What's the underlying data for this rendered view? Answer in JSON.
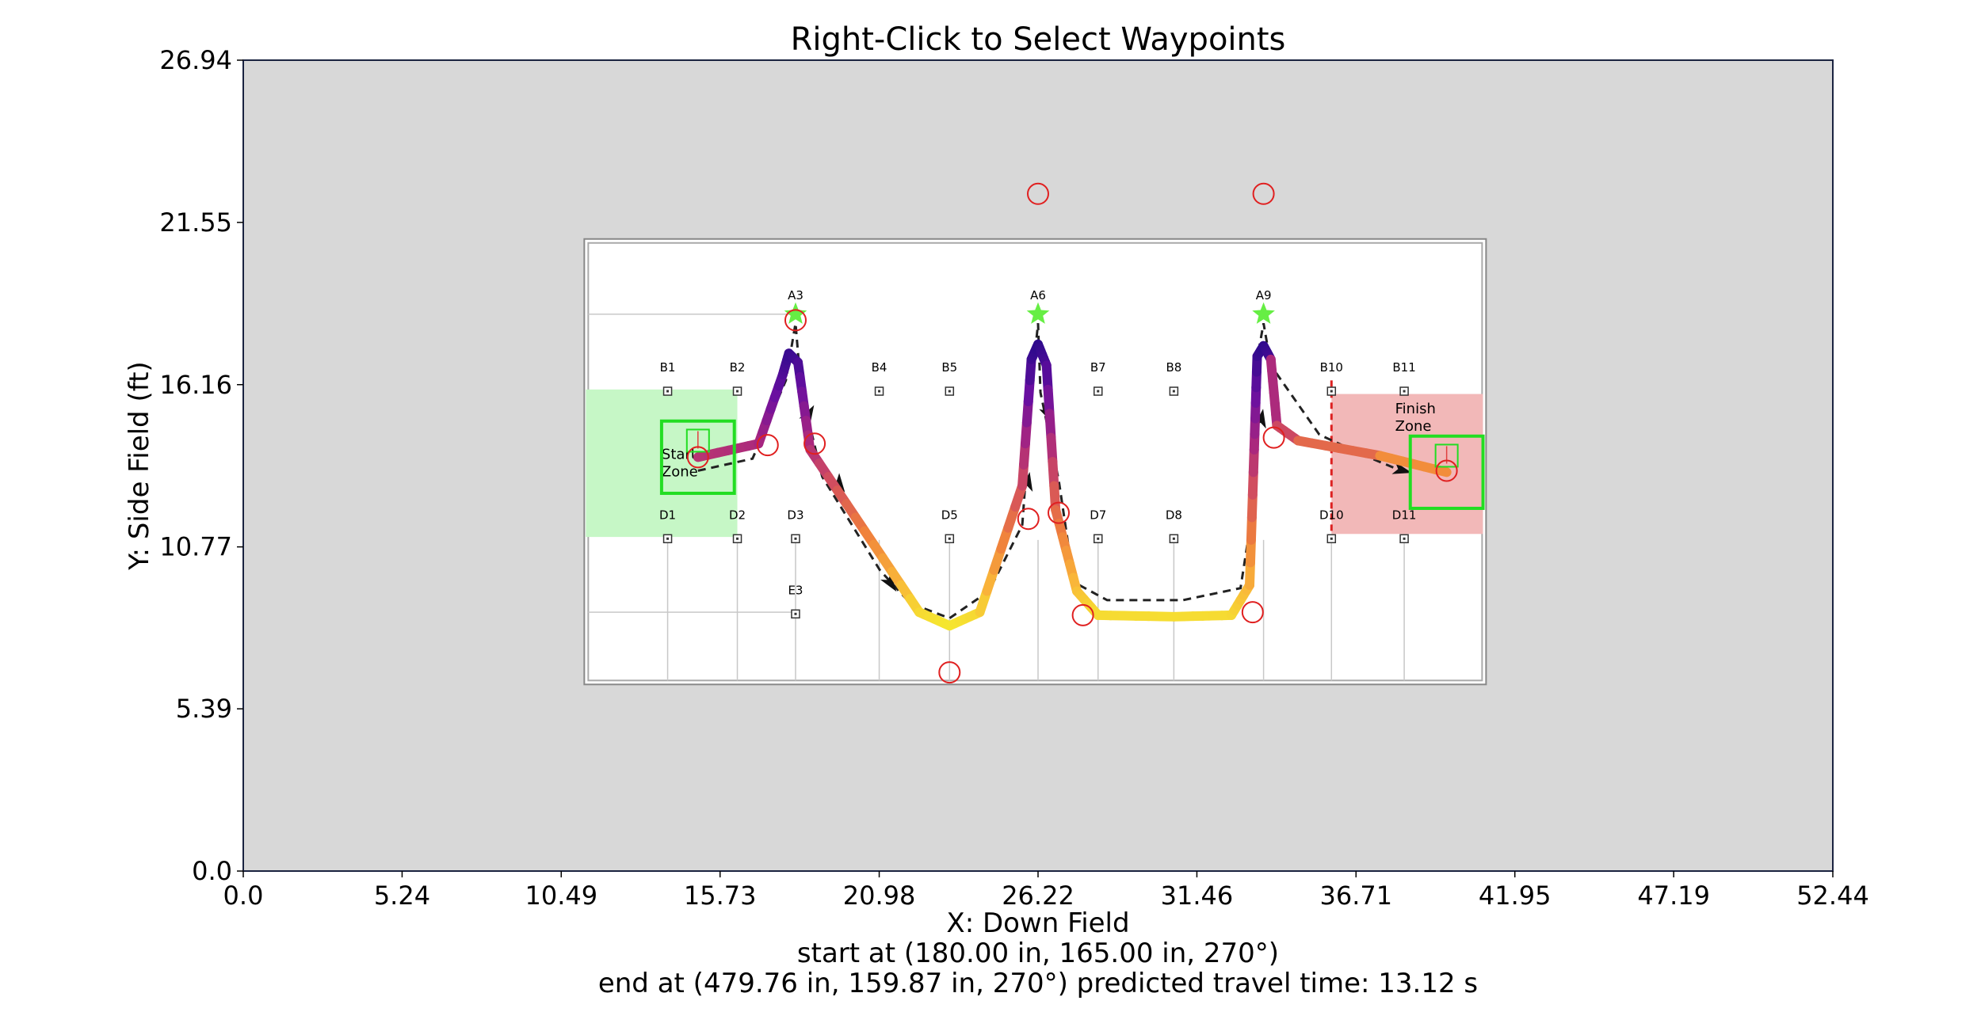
{
  "chart_data": {
    "type": "line",
    "title": "Right-Click to Select Waypoints",
    "xlabel": "X: Down Field",
    "ylabel": "Y: Side Field (ft)",
    "xlim": [
      0.0,
      52.44
    ],
    "ylim": [
      0.0,
      26.94
    ],
    "xticks": [
      "0.0",
      "5.24",
      "10.49",
      "15.73",
      "20.98",
      "26.22",
      "31.46",
      "36.71",
      "41.95",
      "47.19",
      "52.44"
    ],
    "yticks": [
      "0.0",
      "5.39",
      "10.77",
      "16.16",
      "21.55",
      "26.94"
    ],
    "status_lines": [
      "start at (180.00 in, 165.00 in, 270°)",
      "end at (479.76 in, 159.87 in, 270°) predicted travel time: 13.12 s"
    ],
    "colors": {
      "axes_background": "#d8d8d8",
      "field_background": "#ffffff",
      "waypoint_marker": "#e02020",
      "robot_box": "#22dd22",
      "start_zone": "#c6f7c6",
      "finish_zone": "#f2b8b8",
      "path_colormap": [
        "#2d0a8c",
        "#6a0fa0",
        "#a8267f",
        "#d4505c",
        "#ef7f3c",
        "#f9b43a",
        "#f5ed2e"
      ]
    },
    "field_image": {
      "x_range": [
        11.25,
        41.0
      ],
      "y_range": [
        6.2,
        21.0
      ],
      "labels": [
        {
          "text": "A3",
          "x": 18.22,
          "y": 19.0
        },
        {
          "text": "A6",
          "x": 26.22,
          "y": 19.0
        },
        {
          "text": "A9",
          "x": 33.66,
          "y": 19.0
        },
        {
          "text": "B1",
          "x": 14.0,
          "y": 16.6
        },
        {
          "text": "B2",
          "x": 16.3,
          "y": 16.6
        },
        {
          "text": "B4",
          "x": 20.98,
          "y": 16.6
        },
        {
          "text": "B5",
          "x": 23.3,
          "y": 16.6
        },
        {
          "text": "B7",
          "x": 28.2,
          "y": 16.6
        },
        {
          "text": "B8",
          "x": 30.7,
          "y": 16.6
        },
        {
          "text": "B10",
          "x": 35.9,
          "y": 16.6
        },
        {
          "text": "B11",
          "x": 38.3,
          "y": 16.6
        },
        {
          "text": "D1",
          "x": 14.0,
          "y": 11.7
        },
        {
          "text": "D2",
          "x": 16.3,
          "y": 11.7
        },
        {
          "text": "D3",
          "x": 18.22,
          "y": 11.7
        },
        {
          "text": "D5",
          "x": 23.3,
          "y": 11.7
        },
        {
          "text": "D7",
          "x": 28.2,
          "y": 11.7
        },
        {
          "text": "D8",
          "x": 30.7,
          "y": 11.7
        },
        {
          "text": "D10",
          "x": 35.9,
          "y": 11.7
        },
        {
          "text": "D11",
          "x": 38.3,
          "y": 11.7
        },
        {
          "text": "E3",
          "x": 18.22,
          "y": 9.2
        }
      ],
      "start_zone_label": [
        "Start",
        "Zone"
      ],
      "finish_zone_label": [
        "Finish",
        "Zone"
      ]
    },
    "waypoints": [
      {
        "x": 15.0,
        "y": 13.75
      },
      {
        "x": 17.3,
        "y": 14.15
      },
      {
        "x": 18.22,
        "y": 18.3
      },
      {
        "x": 18.85,
        "y": 14.2
      },
      {
        "x": 23.3,
        "y": 6.6
      },
      {
        "x": 25.9,
        "y": 11.7
      },
      {
        "x": 26.9,
        "y": 11.9
      },
      {
        "x": 27.7,
        "y": 8.5
      },
      {
        "x": 33.3,
        "y": 8.6
      },
      {
        "x": 33.66,
        "y": 22.5
      },
      {
        "x": 34.0,
        "y": 14.4
      },
      {
        "x": 26.22,
        "y": 22.5
      },
      {
        "x": 39.7,
        "y": 13.3
      }
    ],
    "path": [
      {
        "x": 15.0,
        "y": 13.75
      },
      {
        "x": 17.0,
        "y": 14.2
      },
      {
        "x": 17.8,
        "y": 16.5
      },
      {
        "x": 18.0,
        "y": 17.2
      },
      {
        "x": 18.3,
        "y": 16.9
      },
      {
        "x": 18.7,
        "y": 14.0
      },
      {
        "x": 20.5,
        "y": 11.3
      },
      {
        "x": 22.3,
        "y": 8.6
      },
      {
        "x": 23.3,
        "y": 8.15
      },
      {
        "x": 24.3,
        "y": 8.6
      },
      {
        "x": 25.7,
        "y": 12.8
      },
      {
        "x": 26.0,
        "y": 17.0
      },
      {
        "x": 26.22,
        "y": 17.5
      },
      {
        "x": 26.5,
        "y": 16.8
      },
      {
        "x": 26.8,
        "y": 12.0
      },
      {
        "x": 27.5,
        "y": 9.3
      },
      {
        "x": 28.2,
        "y": 8.5
      },
      {
        "x": 30.7,
        "y": 8.45
      },
      {
        "x": 32.6,
        "y": 8.5
      },
      {
        "x": 33.2,
        "y": 9.5
      },
      {
        "x": 33.35,
        "y": 14.0
      },
      {
        "x": 33.45,
        "y": 17.1
      },
      {
        "x": 33.66,
        "y": 17.45
      },
      {
        "x": 33.9,
        "y": 17.0
      },
      {
        "x": 34.1,
        "y": 14.8
      },
      {
        "x": 34.8,
        "y": 14.3
      },
      {
        "x": 37.5,
        "y": 13.8
      },
      {
        "x": 39.7,
        "y": 13.25
      }
    ],
    "reference_path": [
      {
        "x": 15.0,
        "y": 13.3
      },
      {
        "x": 16.8,
        "y": 13.7
      },
      {
        "x": 17.9,
        "y": 16.3
      },
      {
        "x": 18.22,
        "y": 18.2
      },
      {
        "x": 18.4,
        "y": 16.0
      },
      {
        "x": 19.1,
        "y": 13.1
      },
      {
        "x": 21.0,
        "y": 10.0
      },
      {
        "x": 22.0,
        "y": 8.9
      },
      {
        "x": 23.3,
        "y": 8.4
      },
      {
        "x": 24.6,
        "y": 9.3
      },
      {
        "x": 25.7,
        "y": 11.5
      },
      {
        "x": 26.1,
        "y": 17.0
      },
      {
        "x": 26.22,
        "y": 18.2
      },
      {
        "x": 26.3,
        "y": 15.9
      },
      {
        "x": 26.9,
        "y": 13.0
      },
      {
        "x": 27.4,
        "y": 9.6
      },
      {
        "x": 28.5,
        "y": 9.0
      },
      {
        "x": 31.0,
        "y": 9.0
      },
      {
        "x": 32.9,
        "y": 9.4
      },
      {
        "x": 33.3,
        "y": 12.0
      },
      {
        "x": 33.5,
        "y": 17.3
      },
      {
        "x": 33.66,
        "y": 18.2
      },
      {
        "x": 33.9,
        "y": 16.8
      },
      {
        "x": 35.5,
        "y": 14.5
      },
      {
        "x": 37.0,
        "y": 13.8
      },
      {
        "x": 38.2,
        "y": 13.3
      }
    ],
    "path_arrows": [
      {
        "x": 18.7,
        "y": 15.25,
        "angle": -60
      },
      {
        "x": 19.7,
        "y": 12.8,
        "angle": 55
      },
      {
        "x": 21.4,
        "y": 9.5,
        "angle": 55
      },
      {
        "x": 26.6,
        "y": 15.1,
        "angle": 65
      },
      {
        "x": 25.9,
        "y": 13.0,
        "angle": -80
      },
      {
        "x": 33.6,
        "y": 15.1,
        "angle": -80
      },
      {
        "x": 38.3,
        "y": 13.3,
        "angle": 15
      }
    ],
    "robot_poses": [
      {
        "x": 15.0,
        "y": 13.75,
        "w": 2.4,
        "h": 2.4,
        "tag_x": 15.0,
        "tag_y": 14.3
      },
      {
        "x": 39.7,
        "y": 13.25,
        "w": 2.4,
        "h": 2.4,
        "tag_x": 39.7,
        "tag_y": 13.8
      }
    ],
    "stars": [
      {
        "x": 18.22,
        "y": 18.5
      },
      {
        "x": 26.22,
        "y": 18.5
      },
      {
        "x": 33.66,
        "y": 18.5
      }
    ]
  }
}
